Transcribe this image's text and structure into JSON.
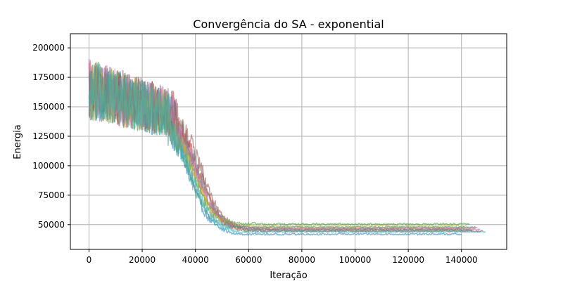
{
  "chart_data": {
    "type": "line",
    "title": "Convergência do SA - exponential",
    "xlabel": "Iteração",
    "ylabel": "Energia",
    "xlim": [
      -7000,
      157000
    ],
    "ylim": [
      29000,
      212000
    ],
    "xticks": [
      0,
      20000,
      40000,
      60000,
      80000,
      100000,
      120000,
      140000
    ],
    "yticks": [
      50000,
      75000,
      100000,
      125000,
      150000,
      175000,
      200000
    ],
    "xtick_labels": [
      "0",
      "20000",
      "40000",
      "60000",
      "80000",
      "100000",
      "120000",
      "140000"
    ],
    "ytick_labels": [
      "50000",
      "75000",
      "100000",
      "125000",
      "150000",
      "175000",
      "200000"
    ],
    "grid": true,
    "series": [
      {
        "color": "#1f77b4",
        "end_x": 140000,
        "final": 34000,
        "drop_center": 38000,
        "noise_end": 30000
      },
      {
        "color": "#ff7f0e",
        "end_x": 145000,
        "final": 39000,
        "drop_center": 40000,
        "noise_end": 32000
      },
      {
        "color": "#2ca02c",
        "end_x": 143000,
        "final": 42500,
        "drop_center": 39000,
        "noise_end": 31000
      },
      {
        "color": "#d62728",
        "end_x": 148000,
        "final": 36500,
        "drop_center": 42000,
        "noise_end": 34000
      },
      {
        "color": "#9467bd",
        "end_x": 147000,
        "final": 38000,
        "drop_center": 41000,
        "noise_end": 33000
      },
      {
        "color": "#8c564b",
        "end_x": 144000,
        "final": 37500,
        "drop_center": 43000,
        "noise_end": 35000
      },
      {
        "color": "#e377c2",
        "end_x": 146000,
        "final": 39500,
        "drop_center": 40500,
        "noise_end": 32500
      },
      {
        "color": "#bcbd22",
        "end_x": 142000,
        "final": 41000,
        "drop_center": 39500,
        "noise_end": 31500
      },
      {
        "color": "#17becf",
        "end_x": 149000,
        "final": 36000,
        "drop_center": 38500,
        "noise_end": 30500
      },
      {
        "color": "#7f7f7f",
        "end_x": 141000,
        "final": 38500,
        "drop_center": 41500,
        "noise_end": 33500
      },
      {
        "color": "#4c9a8a",
        "end_x": 145500,
        "final": 40000,
        "drop_center": 37500,
        "noise_end": 29500
      },
      {
        "color": "#5fae96",
        "end_x": 143500,
        "final": 37000,
        "drop_center": 39000,
        "noise_end": 30000
      }
    ]
  }
}
